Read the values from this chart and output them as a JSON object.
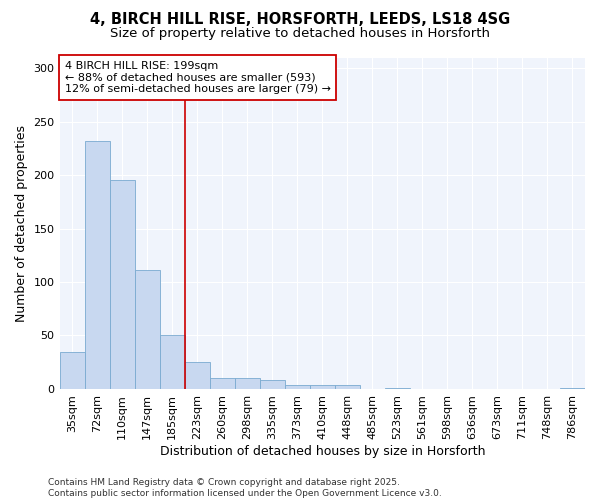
{
  "title_line1": "4, BIRCH HILL RISE, HORSFORTH, LEEDS, LS18 4SG",
  "title_line2": "Size of property relative to detached houses in Horsforth",
  "xlabel": "Distribution of detached houses by size in Horsforth",
  "ylabel": "Number of detached properties",
  "categories": [
    "35sqm",
    "72sqm",
    "110sqm",
    "147sqm",
    "185sqm",
    "223sqm",
    "260sqm",
    "298sqm",
    "335sqm",
    "373sqm",
    "410sqm",
    "448sqm",
    "485sqm",
    "523sqm",
    "561sqm",
    "598sqm",
    "636sqm",
    "673sqm",
    "711sqm",
    "748sqm",
    "786sqm"
  ],
  "values": [
    35,
    232,
    195,
    111,
    50,
    25,
    10,
    10,
    8,
    4,
    4,
    4,
    0,
    1,
    0,
    0,
    0,
    0,
    0,
    0,
    1
  ],
  "bar_color": "#c8d8f0",
  "bar_edge_color": "#7aaad0",
  "vline_x": 4.5,
  "vline_color": "#cc0000",
  "annotation_text": "4 BIRCH HILL RISE: 199sqm\n← 88% of detached houses are smaller (593)\n12% of semi-detached houses are larger (79) →",
  "annotation_box_edgecolor": "#cc0000",
  "annotation_box_facecolor": "#ffffff",
  "ylim": [
    0,
    310
  ],
  "yticks": [
    0,
    50,
    100,
    150,
    200,
    250,
    300
  ],
  "footer_text": "Contains HM Land Registry data © Crown copyright and database right 2025.\nContains public sector information licensed under the Open Government Licence v3.0.",
  "background_color": "#ffffff",
  "plot_bg_color": "#f0f4fc",
  "title_fontsize": 10.5,
  "subtitle_fontsize": 9.5,
  "axis_label_fontsize": 9,
  "tick_fontsize": 8,
  "annotation_fontsize": 8,
  "footer_fontsize": 6.5
}
